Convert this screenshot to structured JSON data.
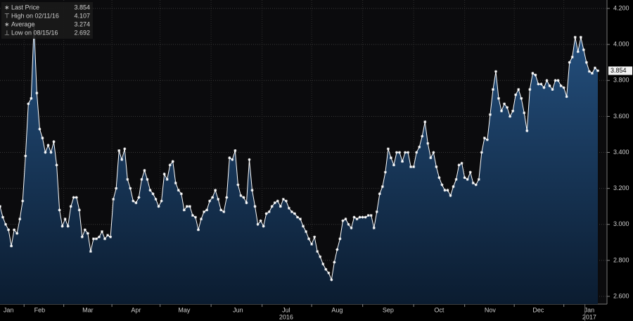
{
  "chart_data": {
    "type": "area",
    "legend": [
      {
        "label": "Last Price",
        "value": 3.854
      },
      {
        "label": "High on 02/11/16",
        "value": 4.107
      },
      {
        "label": "Average",
        "value": 3.274
      },
      {
        "label": "Low on 08/15/16",
        "value": 2.692
      }
    ],
    "categories": [
      null,
      null,
      null,
      "Jan",
      null,
      null,
      null,
      null,
      null,
      null,
      null,
      null,
      null,
      null,
      "Feb",
      null,
      null,
      null,
      null,
      null,
      null,
      null,
      null,
      null,
      null,
      null,
      null,
      null,
      null,
      null,
      null,
      "Mar",
      null,
      null,
      null,
      null,
      null,
      null,
      null,
      null,
      null,
      null,
      null,
      null,
      null,
      null,
      null,
      null,
      "Apr",
      null,
      null,
      null,
      null,
      null,
      null,
      null,
      null,
      null,
      null,
      null,
      null,
      null,
      null,
      null,
      null,
      "May",
      null,
      null,
      null,
      null,
      null,
      null,
      null,
      null,
      null,
      null,
      null,
      null,
      null,
      null,
      null,
      null,
      null,
      null,
      "Jun",
      null,
      null,
      null,
      null,
      null,
      null,
      null,
      null,
      null,
      null,
      null,
      null,
      null,
      null,
      null,
      null,
      "Jul",
      null,
      null,
      null,
      null,
      null,
      null,
      null,
      null,
      null,
      null,
      null,
      null,
      null,
      null,
      null,
      null,
      null,
      "Aug",
      null,
      null,
      null,
      null,
      null,
      null,
      null,
      null,
      null,
      null,
      null,
      null,
      null,
      null,
      null,
      null,
      null,
      "Sep",
      null,
      null,
      null,
      null,
      null,
      null,
      null,
      null,
      null,
      null,
      null,
      null,
      null,
      null,
      null,
      null,
      null,
      "Oct",
      null,
      null,
      null,
      null,
      null,
      null,
      null,
      null,
      null,
      null,
      null,
      null,
      null,
      null,
      null,
      null,
      null,
      "Nov",
      null,
      null,
      null,
      null,
      null,
      null,
      null,
      null,
      null,
      null,
      null,
      null,
      null,
      null,
      null,
      null,
      "Dec",
      null,
      null,
      null,
      null,
      null,
      null,
      null,
      null,
      null,
      null,
      null,
      null,
      null,
      null,
      null,
      null,
      null,
      "Jan",
      null,
      null,
      null
    ],
    "year_labels": [
      "2016",
      "2017"
    ],
    "series": [
      {
        "name": "Last Price",
        "color": "#ffffff",
        "fill": "#1d4470",
        "values": [
          3.1,
          3.04,
          3.0,
          2.97,
          2.88,
          2.97,
          2.95,
          3.03,
          3.13,
          3.38,
          3.67,
          3.7,
          4.107,
          3.73,
          3.53,
          3.48,
          3.4,
          3.44,
          3.4,
          3.46,
          3.33,
          3.08,
          2.99,
          3.03,
          2.99,
          3.1,
          3.15,
          3.15,
          3.08,
          2.93,
          2.97,
          2.95,
          2.85,
          2.92,
          2.92,
          2.93,
          2.96,
          2.92,
          2.94,
          2.93,
          3.14,
          3.2,
          3.41,
          3.36,
          3.42,
          3.25,
          3.2,
          3.13,
          3.12,
          3.15,
          3.25,
          3.3,
          3.25,
          3.19,
          3.17,
          3.14,
          3.1,
          3.13,
          3.28,
          3.25,
          3.33,
          3.35,
          3.23,
          3.19,
          3.17,
          3.08,
          3.1,
          3.1,
          3.05,
          3.04,
          2.97,
          3.03,
          3.07,
          3.08,
          3.13,
          3.15,
          3.19,
          3.14,
          3.08,
          3.07,
          3.15,
          3.37,
          3.36,
          3.41,
          3.22,
          3.16,
          3.15,
          3.12,
          3.36,
          3.19,
          3.1,
          3.0,
          3.02,
          2.99,
          3.06,
          3.07,
          3.1,
          3.12,
          3.13,
          3.1,
          3.14,
          3.13,
          3.09,
          3.07,
          3.06,
          3.04,
          3.03,
          2.99,
          2.96,
          2.92,
          2.89,
          2.93,
          2.85,
          2.82,
          2.78,
          2.75,
          2.73,
          2.692,
          2.79,
          2.86,
          2.92,
          3.02,
          3.03,
          3.0,
          2.98,
          3.04,
          3.03,
          3.04,
          3.04,
          3.04,
          3.05,
          3.05,
          2.98,
          3.07,
          3.17,
          3.21,
          3.29,
          3.42,
          3.37,
          3.33,
          3.4,
          3.4,
          3.35,
          3.4,
          3.4,
          3.32,
          3.32,
          3.4,
          3.43,
          3.49,
          3.57,
          3.45,
          3.37,
          3.4,
          3.32,
          3.26,
          3.22,
          3.19,
          3.19,
          3.16,
          3.21,
          3.25,
          3.33,
          3.34,
          3.26,
          3.25,
          3.29,
          3.23,
          3.22,
          3.25,
          3.4,
          3.48,
          3.47,
          3.61,
          3.75,
          3.85,
          3.7,
          3.63,
          3.67,
          3.65,
          3.6,
          3.63,
          3.72,
          3.75,
          3.7,
          3.62,
          3.52,
          3.75,
          3.84,
          3.83,
          3.78,
          3.78,
          3.76,
          3.8,
          3.77,
          3.75,
          3.8,
          3.8,
          3.77,
          3.76,
          3.71,
          3.9,
          3.93,
          4.04,
          3.96,
          4.04,
          3.97,
          3.9,
          3.85,
          3.84,
          3.87,
          3.854
        ]
      }
    ],
    "ylim": [
      2.557,
      4.247
    ],
    "yticks": [
      {
        "value": 2.6,
        "label": "2.600"
      },
      {
        "value": 2.8,
        "label": "2.800"
      },
      {
        "value": 3.0,
        "label": "3.000"
      },
      {
        "value": 3.2,
        "label": "3.200"
      },
      {
        "value": 3.4,
        "label": "3.400"
      },
      {
        "value": 3.6,
        "label": "3.600"
      },
      {
        "value": 3.8,
        "label": "3.800"
      },
      {
        "value": 4.0,
        "label": "4.000"
      },
      {
        "value": 4.2,
        "label": "4.200"
      }
    ],
    "grid": true
  }
}
